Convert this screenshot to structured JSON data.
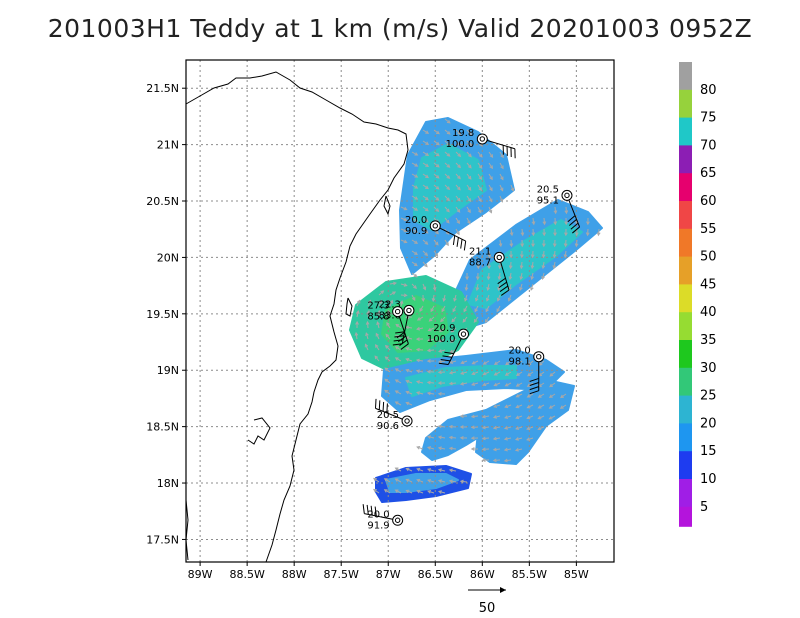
{
  "title": "201003H1 Teddy at 1 km (m/s) Valid 20201003 0952Z",
  "chart_data": {
    "type": "heatmap",
    "xlim": [
      -89.15,
      -84.6
    ],
    "ylim": [
      17.3,
      21.75
    ],
    "x_ticks": [
      {
        "v": -89.0,
        "label": "89W"
      },
      {
        "v": -88.5,
        "label": "88.5W"
      },
      {
        "v": -88.0,
        "label": "88W"
      },
      {
        "v": -87.5,
        "label": "87.5W"
      },
      {
        "v": -87.0,
        "label": "87W"
      },
      {
        "v": -86.5,
        "label": "86.5W"
      },
      {
        "v": -86.0,
        "label": "86W"
      },
      {
        "v": -85.5,
        "label": "85.5W"
      },
      {
        "v": -85.0,
        "label": "85W"
      }
    ],
    "y_ticks": [
      {
        "v": 17.5,
        "label": "17.5N"
      },
      {
        "v": 18.0,
        "label": "18N"
      },
      {
        "v": 18.5,
        "label": "18.5N"
      },
      {
        "v": 19.0,
        "label": "19N"
      },
      {
        "v": 19.5,
        "label": "19.5N"
      },
      {
        "v": 20.0,
        "label": "20N"
      },
      {
        "v": 20.5,
        "label": "20.5N"
      },
      {
        "v": 21.0,
        "label": "21N"
      },
      {
        "v": 21.5,
        "label": "21.5N"
      }
    ],
    "grid": true,
    "colorbar": {
      "labels": [
        "80",
        "75",
        "70",
        "65",
        "60",
        "55",
        "50",
        "45",
        "40",
        "35",
        "30",
        "25",
        "20",
        "15",
        "10",
        "5"
      ],
      "colors": [
        "#a0a0a0",
        "#96d23c",
        "#1fc8c8",
        "#8c1eb4",
        "#e6006e",
        "#f04646",
        "#f07828",
        "#e6a028",
        "#dcdc28",
        "#96dc32",
        "#1ec81e",
        "#32c878",
        "#2db4d2",
        "#1e96f0",
        "#1e3cf0",
        "#a01ee6"
      ],
      "bottom_color": "#b414dc"
    },
    "observations": [
      {
        "lon": -86.0,
        "lat": 21.05,
        "wind": "19.8",
        "pressure": "100.0"
      },
      {
        "lon": -85.1,
        "lat": 20.55,
        "wind": "20.5",
        "pressure": "95.1"
      },
      {
        "lon": -86.5,
        "lat": 20.28,
        "wind": "20.0",
        "pressure": "90.9"
      },
      {
        "lon": -85.82,
        "lat": 20.0,
        "wind": "21.1",
        "pressure": "88.7"
      },
      {
        "lon": -86.78,
        "lat": 19.53,
        "wind": "22.3",
        "pressure": "83.6"
      },
      {
        "lon": -86.9,
        "lat": 19.52,
        "wind": "27.3",
        "pressure": "85.8"
      },
      {
        "lon": -86.2,
        "lat": 19.32,
        "wind": "20.9",
        "pressure": "100.0"
      },
      {
        "lon": -85.4,
        "lat": 19.12,
        "wind": "20.0",
        "pressure": "98.1"
      },
      {
        "lon": -86.8,
        "lat": 18.55,
        "wind": "20.5",
        "pressure": "90.6"
      },
      {
        "lon": -86.9,
        "lat": 17.67,
        "wind": "20.0",
        "pressure": "91.9"
      }
    ],
    "reference_vector_label": "50"
  },
  "colors": {
    "grid": "#8c8c8c",
    "arrow": "#a8a8a8",
    "coast": "#000000"
  }
}
